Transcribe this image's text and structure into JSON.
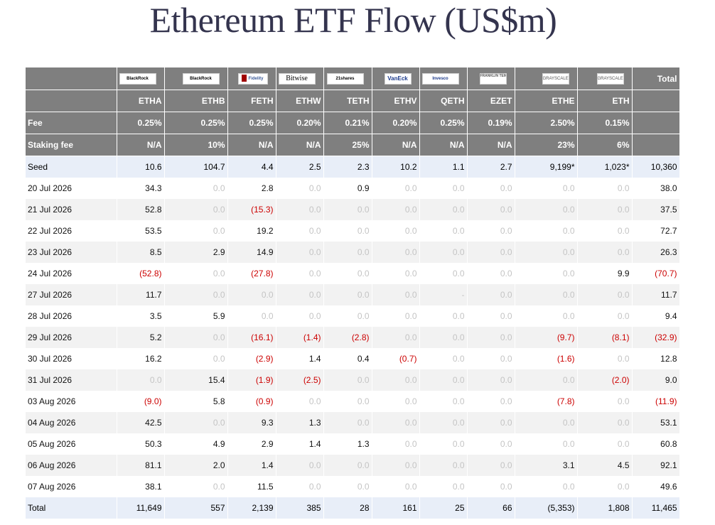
{
  "title": "Ethereum ETF Flow (US$m)",
  "issuer_logos": [
    "BlackRock",
    "BlackRock",
    "Fidelity",
    "Bitwise",
    "21shares",
    "VanEck",
    "Invesco",
    "FRANKLIN TEMPLETON",
    "GRAYSCALE",
    "GRAYSCALE"
  ],
  "total_label": "Total",
  "tickers": [
    "ETHA",
    "ETHB",
    "FETH",
    "ETHW",
    "TETH",
    "ETHV",
    "QETH",
    "EZET",
    "ETHE",
    "ETH"
  ],
  "fee_row": {
    "label": "Fee",
    "values": [
      "0.25%",
      "0.25%",
      "0.25%",
      "0.20%",
      "0.21%",
      "0.20%",
      "0.25%",
      "0.19%",
      "2.50%",
      "0.15%"
    ]
  },
  "staking_row": {
    "label": "Staking fee",
    "values": [
      "N/A",
      "10%",
      "N/A",
      "N/A",
      "25%",
      "N/A",
      "N/A",
      "N/A",
      "23%",
      "6%"
    ]
  },
  "rows": [
    {
      "label": "Seed",
      "values": [
        "10.6",
        "104.7",
        "4.4",
        "2.5",
        "2.3",
        "10.2",
        "1.1",
        "2.7",
        "9,199*",
        "1,023*"
      ],
      "total": "10,360"
    },
    {
      "label": "20 Jul 2026",
      "values": [
        "34.3",
        "0.0",
        "2.8",
        "0.0",
        "0.9",
        "0.0",
        "0.0",
        "0.0",
        "0.0",
        "0.0"
      ],
      "total": "38.0"
    },
    {
      "label": "21 Jul 2026",
      "values": [
        "52.8",
        "0.0",
        "(15.3)",
        "0.0",
        "0.0",
        "0.0",
        "0.0",
        "0.0",
        "0.0",
        "0.0"
      ],
      "total": "37.5"
    },
    {
      "label": "22 Jul 2026",
      "values": [
        "53.5",
        "0.0",
        "19.2",
        "0.0",
        "0.0",
        "0.0",
        "0.0",
        "0.0",
        "0.0",
        "0.0"
      ],
      "total": "72.7"
    },
    {
      "label": "23 Jul 2026",
      "values": [
        "8.5",
        "2.9",
        "14.9",
        "0.0",
        "0.0",
        "0.0",
        "0.0",
        "0.0",
        "0.0",
        "0.0"
      ],
      "total": "26.3"
    },
    {
      "label": "24 Jul 2026",
      "values": [
        "(52.8)",
        "0.0",
        "(27.8)",
        "0.0",
        "0.0",
        "0.0",
        "0.0",
        "0.0",
        "0.0",
        "9.9"
      ],
      "total": "(70.7)"
    },
    {
      "label": "27 Jul 2026",
      "values": [
        "11.7",
        "0.0",
        "0.0",
        "0.0",
        "0.0",
        "0.0",
        "-",
        "0.0",
        "0.0",
        "0.0"
      ],
      "total": "11.7"
    },
    {
      "label": "28 Jul 2026",
      "values": [
        "3.5",
        "5.9",
        "0.0",
        "0.0",
        "0.0",
        "0.0",
        "0.0",
        "0.0",
        "0.0",
        "0.0"
      ],
      "total": "9.4"
    },
    {
      "label": "29 Jul 2026",
      "values": [
        "5.2",
        "0.0",
        "(16.1)",
        "(1.4)",
        "(2.8)",
        "0.0",
        "0.0",
        "0.0",
        "(9.7)",
        "(8.1)"
      ],
      "total": "(32.9)"
    },
    {
      "label": "30 Jul 2026",
      "values": [
        "16.2",
        "0.0",
        "(2.9)",
        "1.4",
        "0.4",
        "(0.7)",
        "0.0",
        "0.0",
        "(1.6)",
        "0.0"
      ],
      "total": "12.8"
    },
    {
      "label": "31 Jul 2026",
      "values": [
        "0.0",
        "15.4",
        "(1.9)",
        "(2.5)",
        "0.0",
        "0.0",
        "0.0",
        "0.0",
        "0.0",
        "(2.0)"
      ],
      "total": "9.0"
    },
    {
      "label": "03 Aug 2026",
      "values": [
        "(9.0)",
        "5.8",
        "(0.9)",
        "0.0",
        "0.0",
        "0.0",
        "0.0",
        "0.0",
        "(7.8)",
        "0.0"
      ],
      "total": "(11.9)"
    },
    {
      "label": "04 Aug 2026",
      "values": [
        "42.5",
        "0.0",
        "9.3",
        "1.3",
        "0.0",
        "0.0",
        "0.0",
        "0.0",
        "0.0",
        "0.0"
      ],
      "total": "53.1"
    },
    {
      "label": "05 Aug 2026",
      "values": [
        "50.3",
        "4.9",
        "2.9",
        "1.4",
        "1.3",
        "0.0",
        "0.0",
        "0.0",
        "0.0",
        "0.0"
      ],
      "total": "60.8"
    },
    {
      "label": "06 Aug 2026",
      "values": [
        "81.1",
        "2.0",
        "1.4",
        "0.0",
        "0.0",
        "0.0",
        "0.0",
        "0.0",
        "3.1",
        "4.5"
      ],
      "total": "92.1"
    },
    {
      "label": "07 Aug 2026",
      "values": [
        "38.1",
        "0.0",
        "11.5",
        "0.0",
        "0.0",
        "0.0",
        "0.0",
        "0.0",
        "0.0",
        "0.0"
      ],
      "total": "49.6"
    }
  ],
  "total_row": {
    "label": "Total",
    "values": [
      "11,649",
      "557",
      "2,139",
      "385",
      "28",
      "161",
      "25",
      "66",
      "(5,353)",
      "1,808"
    ],
    "total": "11,465"
  },
  "colors": {
    "header_bg": "#7f7f7f",
    "header_text": "#ffffff",
    "negative": "#cc0000",
    "zero": "#c4c4c4",
    "highlight_row": "#e8eef8",
    "alt_row": "#f2f2f2",
    "title": "#34344e"
  }
}
